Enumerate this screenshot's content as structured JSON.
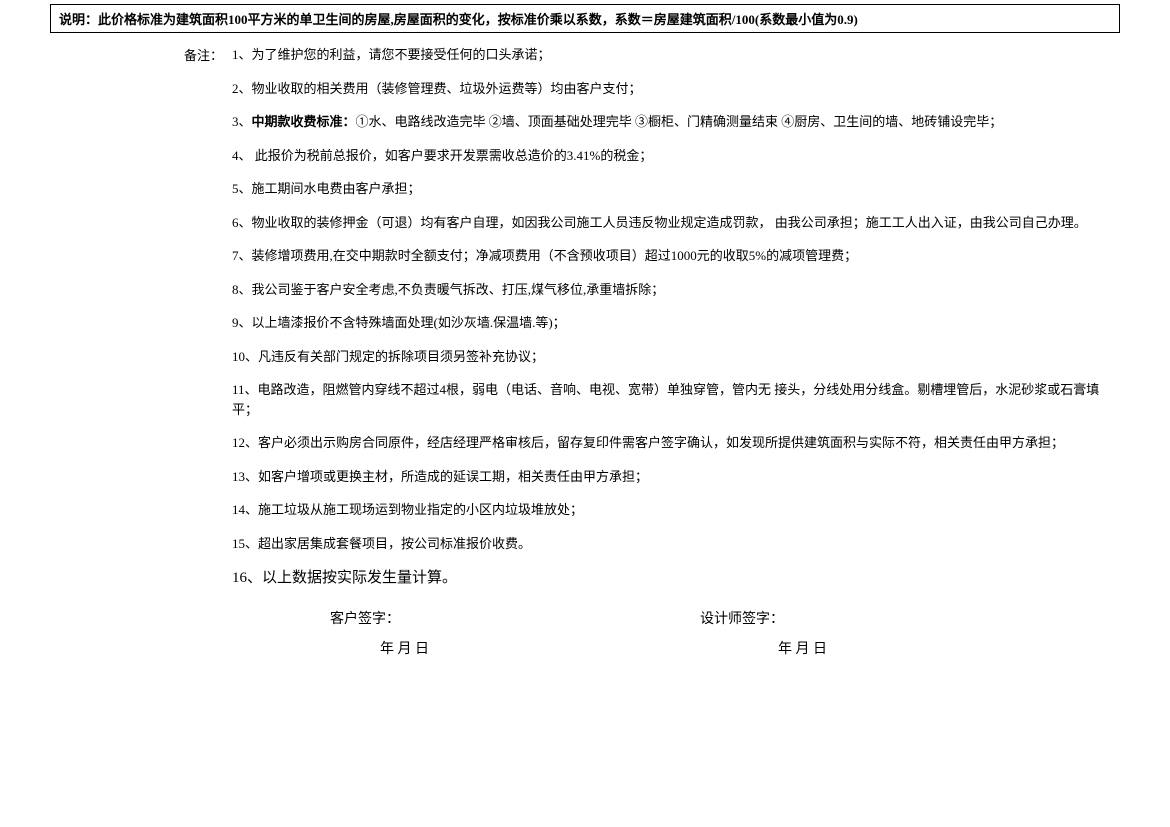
{
  "explanation": "说明：此价格标准为建筑面积100平方米的单卫生间的房屋,房屋面积的变化，按标准价乘以系数，系数＝房屋建筑面积/100(系数最小值为0.9)",
  "notes_label": "备注：",
  "notes": {
    "n1": "1、为了维护您的利益，请您不要接受任何的口头承诺；",
    "n2": "2、物业收取的相关费用（装修管理费、垃圾外运费等）均由客户支付；",
    "n3_prefix": "3、",
    "n3_bold": "中期款收费标准：",
    "n3_rest": "①水、电路线改造完毕 ②墙、顶面基础处理完毕 ③橱柜、门精确测量结束 ④厨房、卫生间的墙、地砖铺设完毕；",
    "n4": "4、 此报价为税前总报价，如客户要求开发票需收总造价的3.41%的税金；",
    "n5": "5、施工期间水电费由客户承担；",
    "n6": "6、物业收取的装修押金（可退）均有客户自理，如因我公司施工人员违反物业规定造成罚款， 由我公司承担；施工工人出入证，由我公司自己办理。",
    "n7": "7、装修增项费用,在交中期款时全额支付；净减项费用（不含预收项目）超过1000元的收取5%的减项管理费；",
    "n8": "8、我公司鉴于客户安全考虑,不负责暖气拆改、打压,煤气移位,承重墙拆除；",
    "n9": "9、以上墙漆报价不含特殊墙面处理(如沙灰墙.保温墙.等)；",
    "n10": "10、凡违反有关部门规定的拆除项目须另签补充协议；",
    "n11": "11、电路改造，阻燃管内穿线不超过4根，弱电（电话、音响、电视、宽带）单独穿管，管内无 接头，分线处用分线盒。剔槽埋管后，水泥砂浆或石膏填平；",
    "n12": "12、客户必须出示购房合同原件，经店经理严格审核后，留存复印件需客户签字确认，如发现所提供建筑面积与实际不符，相关责任由甲方承担；",
    "n13": "13、如客户增项或更换主材，所造成的延误工期，相关责任由甲方承担；",
    "n14": "14、施工垃圾从施工现场运到物业指定的小区内垃圾堆放处；",
    "n15": "15、超出家居集成套餐项目，按公司标准报价收费。",
    "n16": "16、以上数据按实际发生量计算。"
  },
  "signatures": {
    "customer_label": "客户签字：",
    "designer_label": "设计师签字：",
    "date_text": "年   月   日"
  }
}
